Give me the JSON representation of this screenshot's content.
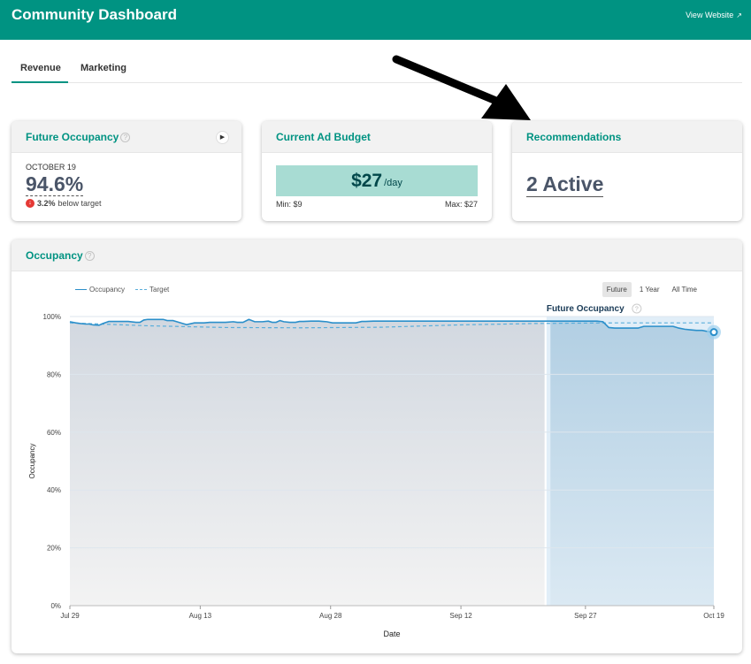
{
  "header": {
    "title": "Community Dashboard",
    "view_website": "View Website",
    "bg_color": "#009382"
  },
  "tabs": [
    {
      "label": "Revenue",
      "active": true
    },
    {
      "label": "Marketing",
      "active": false
    }
  ],
  "cards": {
    "future_occupancy": {
      "title": "Future Occupancy",
      "date": "OCTOBER 19",
      "value": "94.6%",
      "delta": "3.2%",
      "delta_text": "below target"
    },
    "ad_budget": {
      "title": "Current Ad Budget",
      "value": "$27",
      "unit": "/day",
      "min": "Min: $9",
      "max": "Max: $27"
    },
    "recommendations": {
      "title": "Recommendations",
      "value": "2 Active"
    }
  },
  "occupancy_panel": {
    "title": "Occupancy",
    "legend": [
      "Occupancy",
      "Target"
    ],
    "ranges": [
      {
        "label": "Future",
        "selected": true
      },
      {
        "label": "1 Year",
        "selected": false
      },
      {
        "label": "All Time",
        "selected": false
      }
    ],
    "future_label": "Future Occupancy",
    "xlabel": "Date",
    "ylabel": "Occupancy"
  },
  "chart_data": {
    "type": "area",
    "xlabel": "Date",
    "ylabel": "Occupancy",
    "ylim": [
      0,
      100
    ],
    "y_ticks": [
      "0%",
      "20%",
      "40%",
      "60%",
      "80%",
      "100%"
    ],
    "x_ticks": [
      "Jul 29",
      "Aug 13",
      "Aug 28",
      "Sep 12",
      "Sep 27",
      "Oct 19"
    ],
    "future_start": "Sep 27",
    "series": [
      {
        "name": "Occupancy",
        "x_days": [
          0,
          3,
          5,
          8,
          10,
          12,
          15,
          17,
          20,
          24,
          30,
          34,
          36,
          38,
          40,
          44,
          46,
          48,
          50,
          53,
          55,
          58,
          60,
          64,
          66,
          69,
          72,
          75,
          78,
          80,
          84,
          86,
          89,
          92,
          95,
          99,
          102,
          104,
          106,
          108,
          110,
          113,
          116,
          118,
          120,
          124,
          128,
          130,
          132,
          135,
          138,
          141,
          144,
          147,
          150,
          152,
          156,
          159,
          162,
          165,
          168,
          170,
          172,
          176,
          180,
          184,
          186,
          189,
          192,
          194,
          197,
          200,
          203,
          206,
          209,
          212,
          215,
          218,
          221,
          224,
          226,
          229,
          232,
          235,
          238,
          241,
          244,
          247,
          250,
          252,
          255,
          258,
          262,
          265,
          268,
          271,
          274,
          277,
          280,
          283,
          286,
          289,
          292,
          295,
          298,
          301,
          304,
          307,
          310,
          313,
          316,
          319,
          322,
          325,
          328,
          331
        ],
        "values": [
          98.2,
          97.8,
          97.6,
          97.4,
          97.4,
          97.1,
          97.0,
          97.6,
          98.3,
          98.3,
          98.3,
          98.0,
          98.0,
          98.8,
          99.0,
          99.0,
          99.0,
          99.0,
          98.6,
          98.6,
          98.2,
          97.6,
          97.2,
          97.8,
          97.8,
          97.8,
          98.0,
          98.0,
          98.0,
          98.0,
          98.2,
          98.0,
          98.0,
          99.0,
          98.2,
          98.2,
          98.4,
          98.0,
          98.0,
          98.6,
          98.2,
          98.0,
          98.0,
          98.3,
          98.3,
          98.4,
          98.4,
          98.3,
          98.2,
          97.8,
          97.8,
          97.8,
          97.8,
          97.8,
          98.3,
          98.3,
          98.4,
          98.4,
          98.4,
          98.4,
          98.4,
          98.4,
          98.4,
          98.4,
          98.4,
          98.4,
          98.4,
          98.4,
          98.4,
          98.4,
          98.4,
          98.4,
          98.4,
          98.4,
          98.4,
          98.4,
          98.4,
          98.4,
          98.4,
          98.4,
          98.4,
          98.4,
          98.4,
          98.4,
          98.4,
          98.4,
          98.4,
          98.4,
          98.4,
          98.4,
          98.4,
          98.4,
          98.4,
          98.4,
          98.4,
          98.4,
          98.2,
          96.2,
          96.0,
          96.0,
          96.0,
          96.0,
          96.0,
          96.6,
          96.6,
          96.6,
          96.6,
          96.6,
          96.6,
          96.0,
          95.6,
          95.4,
          95.2,
          95.2,
          94.8,
          94.6
        ],
        "color": "#2b8fca"
      },
      {
        "name": "Target",
        "x_days": [
          0,
          40,
          80,
          120,
          160,
          200,
          240,
          280,
          331
        ],
        "values": [
          97.8,
          96.8,
          96.2,
          96.1,
          96.3,
          97.1,
          97.6,
          97.8,
          97.8
        ],
        "color": "#5aaedb"
      }
    ],
    "legend_position": "top-left",
    "grid": true
  }
}
